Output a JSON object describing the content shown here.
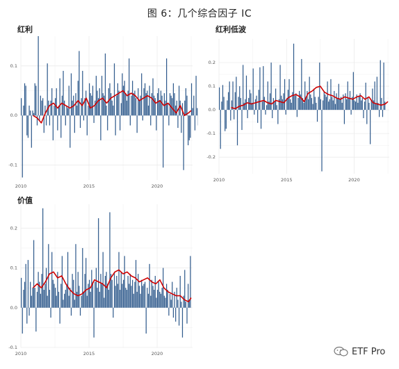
{
  "figure": {
    "title": "图 6：几个综合因子 IC"
  },
  "watermark": {
    "text": "ETF Pro",
    "icon": "wechat-icon"
  },
  "colors": {
    "bar": "#2f5a8c",
    "line": "#d00000",
    "grid": "#ebebeb"
  },
  "chart_data": [
    {
      "type": "bar",
      "title": "红利",
      "ylim": [
        -0.13,
        0.16
      ],
      "yticks": [
        -0.1,
        0.0,
        0.1
      ],
      "ytick_labels": [
        "-0.1",
        "0.0",
        "0.1"
      ],
      "xlim": [
        2010.0,
        2022.6
      ],
      "xticks": [
        2010,
        2015,
        2020
      ],
      "xtick_labels": [
        "2010",
        "2015",
        "2020"
      ],
      "grid": true,
      "series": [
        {
          "kind": "bar",
          "x_start": 2010.0,
          "step": 0.0833,
          "values": [
            0.035,
            -0.125,
            0.02,
            0.065,
            0.06,
            -0.04,
            -0.045,
            0.02,
            0.01,
            -0.065,
            0.01,
            0.005,
            0.065,
            0.06,
            -0.02,
            0.16,
            -0.01,
            0.04,
            0.03,
            0.035,
            -0.035,
            0.02,
            -0.02,
            0.105,
            0.03,
            -0.02,
            0.03,
            0.055,
            -0.05,
            0.02,
            0.035,
            0.055,
            -0.03,
            0.02,
            0.075,
            -0.045,
            0.04,
            0.09,
            0.03,
            -0.02,
            0.02,
            0.015,
            0.06,
            -0.065,
            0.085,
            0.03,
            0.04,
            -0.035,
            0.045,
            0.02,
            0.07,
            0.13,
            -0.025,
            0.035,
            0.09,
            -0.01,
            0.035,
            0.05,
            -0.04,
            0.02,
            0.065,
            0.045,
            0.04,
            0.06,
            -0.015,
            0.03,
            0.08,
            0.05,
            0.035,
            0.055,
            -0.05,
            0.08,
            0.045,
            0.04,
            0.125,
            0.02,
            -0.03,
            0.055,
            0.065,
            0.045,
            0.03,
            0.02,
            0.105,
            -0.04,
            0.04,
            0.065,
            0.05,
            -0.03,
            0.025,
            0.085,
            0.06,
            0.07,
            0.045,
            0.03,
            0.05,
            0.115,
            -0.02,
            0.04,
            0.07,
            0.045,
            0.05,
            0.035,
            -0.035,
            0.055,
            0.03,
            0.04,
            0.085,
            -0.01,
            0.055,
            0.065,
            0.045,
            0.05,
            0.02,
            0.06,
            -0.02,
            0.045,
            0.075,
            0.04,
            0.035,
            -0.03,
            0.045,
            0.055,
            0.03,
            0.05,
            0.04,
            -0.105,
            0.045,
            0.03,
            0.115,
            0.025,
            -0.02,
            0.045,
            0.04,
            0.035,
            0.065,
            0.045,
            0.02,
            0.03,
            -0.025,
            0.06,
            0.03,
            -0.035,
            0.025,
            -0.11,
            0.03,
            0.055,
            0.04,
            -0.06,
            -0.05,
            -0.045,
            0.065,
            0.015,
            0.04,
            -0.03,
            0.08,
            0.015,
            -0.02,
            0.06,
            0.1
          ]
        },
        {
          "kind": "line",
          "x": [
            2010.9,
            2011.2,
            2011.5,
            2011.8,
            2012.1,
            2012.4,
            2012.7,
            2013.0,
            2013.3,
            2013.6,
            2013.9,
            2014.2,
            2014.5,
            2014.8,
            2015.1,
            2015.4,
            2015.7,
            2016.0,
            2016.3,
            2016.6,
            2016.9,
            2017.2,
            2017.5,
            2017.8,
            2018.1,
            2018.4,
            2018.7,
            2019.0,
            2019.3,
            2019.6,
            2019.9,
            2020.2,
            2020.5,
            2020.8,
            2021.1,
            2021.4,
            2021.7,
            2022.0,
            2022.3,
            2022.5
          ],
          "y": [
            0.0,
            -0.005,
            -0.015,
            0.005,
            0.02,
            0.025,
            0.015,
            0.025,
            0.02,
            0.015,
            0.02,
            0.03,
            0.02,
            0.035,
            0.015,
            0.02,
            0.03,
            0.035,
            0.025,
            0.035,
            0.04,
            0.045,
            0.05,
            0.04,
            0.045,
            0.04,
            0.03,
            0.035,
            0.04,
            0.035,
            0.025,
            0.03,
            0.02,
            0.025,
            0.015,
            0.005,
            0.02,
            0.0,
            0.005,
            0.01
          ]
        }
      ]
    },
    {
      "type": "bar",
      "title": "红利低波",
      "ylim": [
        -0.27,
        0.3
      ],
      "yticks": [
        -0.2,
        -0.1,
        0.0,
        0.1,
        0.2
      ],
      "ytick_labels": [
        "-0.2",
        "-0.1",
        "0.0",
        "0.1",
        "0.2"
      ],
      "xlim": [
        2010.0,
        2022.6
      ],
      "xticks": [
        2010,
        2015,
        2020
      ],
      "xtick_labels": [
        "2010",
        "2015",
        "2020"
      ],
      "grid": true,
      "series": [
        {
          "kind": "bar",
          "x_start": 2010.0,
          "step": 0.0833,
          "values": [
            0.095,
            -0.165,
            0.035,
            0.105,
            0.055,
            -0.09,
            -0.08,
            0.04,
            0.075,
            0.12,
            -0.045,
            0.04,
            0.12,
            -0.04,
            0.075,
            0.14,
            -0.15,
            0.055,
            0.1,
            0.05,
            -0.085,
            0.19,
            0.03,
            0.045,
            0.145,
            -0.035,
            0.05,
            0.085,
            0.07,
            0.03,
            0.175,
            -0.02,
            0.045,
            0.06,
            -0.055,
            0.085,
            0.18,
            -0.08,
            0.035,
            0.185,
            0.055,
            -0.02,
            0.02,
            0.12,
            0.035,
            0.07,
            0.2,
            -0.035,
            0.05,
            0.035,
            0.09,
            0.02,
            -0.06,
            0.045,
            0.19,
            0.06,
            0.045,
            0.07,
            0.13,
            -0.02,
            0.05,
            0.085,
            0.13,
            0.045,
            0.03,
            0.075,
            0.28,
            0.06,
            0.07,
            -0.03,
            0.05,
            0.08,
            0.065,
            0.215,
            0.05,
            0.03,
            0.12,
            0.055,
            0.08,
            0.045,
            0.14,
            0.065,
            0.05,
            0.025,
            0.09,
            0.055,
            0.03,
            -0.05,
            0.055,
            0.2,
            0.045,
            -0.26,
            0.04,
            0.08,
            0.065,
            0.055,
            0.12,
            0.035,
            0.045,
            0.13,
            0.055,
            0.04,
            0.08,
            0.025,
            0.07,
            0.05,
            0.11,
            0.045,
            0.055,
            0.03,
            0.065,
            -0.06,
            0.07,
            0.045,
            0.12,
            0.05,
            0.08,
            -0.02,
            0.055,
            0.16,
            0.04,
            0.035,
            0.065,
            0.03,
            0.06,
            0.07,
            0.04,
            0.05,
            -0.035,
            0.035,
            0.115,
            -0.06,
            0.055,
            0.03,
            -0.145,
            0.04,
            0.09,
            0.04,
            0.12,
            0.025,
            0.14,
            0.03,
            -0.03,
            0.21,
            0.05,
            -0.03,
            0.2,
            0.035
          ]
        },
        {
          "kind": "line",
          "x": [
            2010.9,
            2011.2,
            2011.5,
            2011.8,
            2012.1,
            2012.4,
            2012.7,
            2013.0,
            2013.3,
            2013.6,
            2013.9,
            2014.2,
            2014.5,
            2014.8,
            2015.1,
            2015.4,
            2015.7,
            2016.0,
            2016.3,
            2016.6,
            2016.9,
            2017.2,
            2017.5,
            2017.8,
            2018.1,
            2018.4,
            2018.7,
            2019.0,
            2019.3,
            2019.6,
            2019.9,
            2020.2,
            2020.5,
            2020.8,
            2021.1,
            2021.4,
            2021.7,
            2022.0,
            2022.3,
            2022.5
          ],
          "y": [
            0.01,
            0.005,
            0.015,
            0.02,
            0.03,
            0.025,
            0.03,
            0.035,
            0.04,
            0.03,
            0.025,
            0.04,
            0.035,
            0.03,
            0.05,
            0.06,
            0.065,
            0.055,
            0.035,
            0.07,
            0.08,
            0.095,
            0.1,
            0.075,
            0.065,
            0.06,
            0.05,
            0.045,
            0.055,
            0.05,
            0.045,
            0.055,
            0.06,
            0.045,
            0.055,
            0.03,
            0.025,
            0.02,
            0.025,
            0.035
          ]
        }
      ]
    },
    {
      "type": "bar",
      "title": "价值",
      "ylim": [
        -0.1,
        0.26
      ],
      "yticks": [
        -0.1,
        0.0,
        0.1,
        0.2
      ],
      "ytick_labels": [
        "-0.1",
        "0.0",
        "0.1",
        "0.2"
      ],
      "xlim": [
        2010.0,
        2022.6
      ],
      "xticks": [
        2010,
        2015,
        2020
      ],
      "xtick_labels": [
        "2010",
        "2015",
        "2020"
      ],
      "grid": true,
      "series": [
        {
          "kind": "bar",
          "x_start": 2010.0,
          "step": 0.0833,
          "values": [
            0.075,
            -0.065,
            0.045,
            0.065,
            0.11,
            -0.04,
            0.12,
            -0.02,
            0.065,
            0.03,
            0.05,
            0.17,
            0.05,
            -0.06,
            0.04,
            0.09,
            0.065,
            0.035,
            0.085,
            0.25,
            0.045,
            0.06,
            0.1,
            0.03,
            0.16,
            0.045,
            -0.025,
            0.14,
            0.07,
            0.06,
            0.05,
            0.03,
            0.09,
            0.04,
            -0.04,
            0.06,
            0.13,
            0.02,
            0.035,
            0.045,
            0.06,
            0.14,
            0.03,
            0.05,
            -0.02,
            0.085,
            0.07,
            0.02,
            0.16,
            0.04,
            0.09,
            0.055,
            -0.02,
            0.03,
            0.15,
            0.04,
            0.085,
            0.125,
            0.03,
            0.06,
            0.07,
            0.04,
            0.095,
            0.065,
            -0.075,
            0.065,
            0.1,
            0.05,
            0.225,
            0.04,
            0.085,
            0.06,
            0.14,
            0.025,
            0.08,
            0.09,
            0.06,
            0.045,
            0.24,
            0.085,
            0.07,
            -0.025,
            0.09,
            0.055,
            0.08,
            0.06,
            0.14,
            0.045,
            0.09,
            0.06,
            0.07,
            0.13,
            0.05,
            0.045,
            0.08,
            0.06,
            0.085,
            0.055,
            0.07,
            0.035,
            0.065,
            0.12,
            0.04,
            0.085,
            0.055,
            0.035,
            0.07,
            0.055,
            0.06,
            0.065,
            -0.065,
            0.05,
            0.035,
            0.11,
            0.03,
            0.07,
            0.055,
            0.045,
            0.08,
            0.025,
            0.045,
            0.065,
            0.04,
            0.035,
            0.05,
            0.1,
            0.03,
            0.025,
            0.06,
            0.045,
            -0.02,
            0.035,
            0.02,
            0.065,
            -0.025,
            0.04,
            -0.035,
            0.05,
            0.02,
            -0.045,
            0.08,
            0.015,
            -0.075,
            0.03,
            0.095,
            0.015,
            -0.04,
            0.06,
            0.02,
            0.13
          ]
        },
        {
          "kind": "line",
          "x": [
            2010.9,
            2011.2,
            2011.5,
            2011.8,
            2012.1,
            2012.4,
            2012.7,
            2013.0,
            2013.3,
            2013.6,
            2013.9,
            2014.2,
            2014.5,
            2014.8,
            2015.1,
            2015.4,
            2015.7,
            2016.0,
            2016.3,
            2016.6,
            2016.9,
            2017.2,
            2017.5,
            2017.8,
            2018.1,
            2018.4,
            2018.7,
            2019.0,
            2019.3,
            2019.6,
            2019.9,
            2020.2,
            2020.5,
            2020.8,
            2021.1,
            2021.4,
            2021.7,
            2022.0,
            2022.3,
            2022.5
          ],
          "y": [
            0.05,
            0.06,
            0.05,
            0.065,
            0.085,
            0.09,
            0.075,
            0.08,
            0.06,
            0.045,
            0.035,
            0.03,
            0.035,
            0.045,
            0.05,
            0.07,
            0.065,
            0.06,
            0.05,
            0.075,
            0.09,
            0.095,
            0.085,
            0.09,
            0.08,
            0.075,
            0.065,
            0.07,
            0.075,
            0.065,
            0.06,
            0.07,
            0.05,
            0.04,
            0.035,
            0.03,
            0.03,
            0.02,
            0.015,
            0.025
          ]
        }
      ]
    }
  ]
}
